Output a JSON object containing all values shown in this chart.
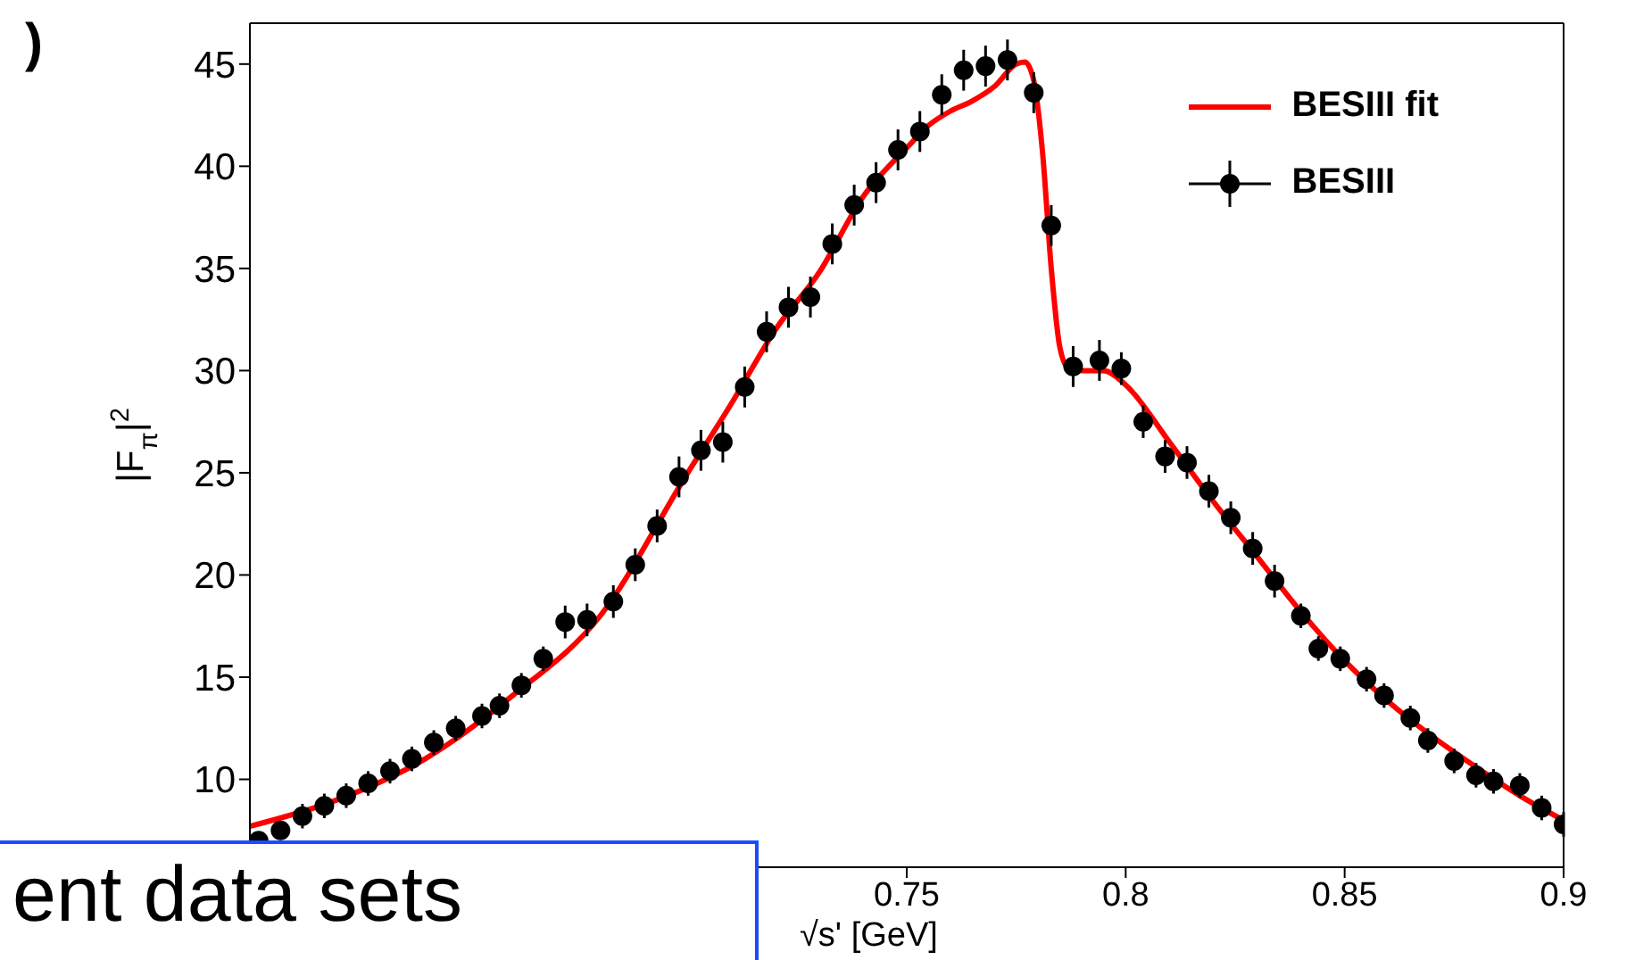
{
  "chart_data": {
    "type": "scatter",
    "xlabel": "√s' [GeV]",
    "ylabel": "|F$_{π}$|$^{2}$",
    "xlim": [
      0.6,
      0.9
    ],
    "ylim": [
      5.7,
      47
    ],
    "xticks": [
      0.75,
      0.8,
      0.85,
      0.9
    ],
    "yticks": [
      10,
      15,
      20,
      25,
      30,
      35,
      40,
      45
    ],
    "legend": "top right",
    "annotations": [
      ")",
      "ent data sets"
    ],
    "series": [
      {
        "type": "line",
        "name": "BESIII fit",
        "color": "#ff0000",
        "x": [
          0.6,
          0.62,
          0.64,
          0.66,
          0.68,
          0.7,
          0.71,
          0.72,
          0.73,
          0.74,
          0.75,
          0.755,
          0.76,
          0.765,
          0.77,
          0.775,
          0.777,
          0.779,
          0.781,
          0.783,
          0.785,
          0.787,
          0.79,
          0.795,
          0.8,
          0.81,
          0.82,
          0.83,
          0.84,
          0.85,
          0.86,
          0.87,
          0.88,
          0.89,
          0.9
        ],
        "values": [
          7.7,
          9.0,
          11.0,
          14.1,
          18.0,
          25.0,
          28.4,
          32.0,
          34.8,
          38.5,
          40.9,
          42.0,
          42.7,
          43.2,
          43.9,
          45.0,
          45.1,
          44.2,
          40.7,
          35.0,
          31.1,
          30.1,
          30.0,
          30.0,
          29.3,
          26.5,
          23.6,
          20.9,
          18.2,
          15.8,
          13.8,
          12.1,
          10.6,
          9.2,
          8.0
        ]
      },
      {
        "name": "BESIII",
        "color": "#000000",
        "marker": "circle",
        "x": [
          0.602,
          0.607,
          0.612,
          0.617,
          0.622,
          0.627,
          0.632,
          0.637,
          0.642,
          0.647,
          0.653,
          0.657,
          0.662,
          0.667,
          0.672,
          0.677,
          0.683,
          0.688,
          0.693,
          0.698,
          0.703,
          0.708,
          0.713,
          0.718,
          0.723,
          0.728,
          0.733,
          0.738,
          0.743,
          0.748,
          0.753,
          0.758,
          0.763,
          0.768,
          0.773,
          0.779,
          0.783,
          0.788,
          0.794,
          0.799,
          0.804,
          0.809,
          0.814,
          0.819,
          0.824,
          0.829,
          0.834,
          0.84,
          0.844,
          0.849,
          0.855,
          0.859,
          0.865,
          0.869,
          0.875,
          0.88,
          0.884,
          0.89,
          0.895,
          0.9
        ],
        "values": [
          7.0,
          7.5,
          8.2,
          8.7,
          9.2,
          9.8,
          10.4,
          11.0,
          11.8,
          12.5,
          13.1,
          13.6,
          14.6,
          15.9,
          17.7,
          17.8,
          18.7,
          20.5,
          22.4,
          24.8,
          26.1,
          26.5,
          29.2,
          31.9,
          33.1,
          33.6,
          36.2,
          38.1,
          39.2,
          40.8,
          41.7,
          43.5,
          44.7,
          44.9,
          45.2,
          43.6,
          37.1,
          30.2,
          30.5,
          30.1,
          27.5,
          25.8,
          25.5,
          24.1,
          22.8,
          21.3,
          19.7,
          18.0,
          16.4,
          15.9,
          14.9,
          14.1,
          13.0,
          11.9,
          10.9,
          10.2,
          9.9,
          9.7,
          8.6,
          7.8
        ],
        "errors": [
          null,
          null,
          0.6,
          0.6,
          0.6,
          0.6,
          0.6,
          0.6,
          0.6,
          0.6,
          0.6,
          0.6,
          0.6,
          0.6,
          0.8,
          0.8,
          0.8,
          0.8,
          0.8,
          1.0,
          1.0,
          1.0,
          1.0,
          1.0,
          1.0,
          1.0,
          1.0,
          1.0,
          1.0,
          1.0,
          1.0,
          1.0,
          1.0,
          1.0,
          1.0,
          1.0,
          1.0,
          1.0,
          1.0,
          0.8,
          0.8,
          0.8,
          0.8,
          0.8,
          0.8,
          0.8,
          0.8,
          0.6,
          0.6,
          0.6,
          0.6,
          0.6,
          0.6,
          0.6,
          0.6,
          0.6,
          0.6,
          0.6,
          0.6,
          0.6
        ]
      }
    ]
  }
}
